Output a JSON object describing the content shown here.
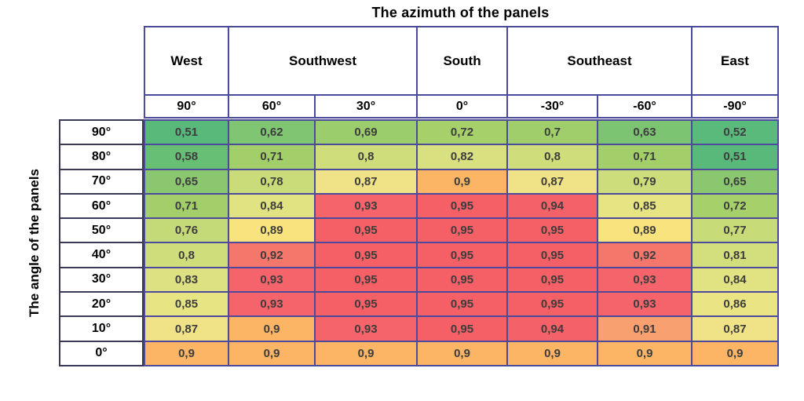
{
  "title": "The azimuth of the panels",
  "ylabel": "The angle of the panels",
  "chart_data": {
    "type": "heatmap",
    "title": "The azimuth of the panels",
    "xlabel": "The azimuth of the panels",
    "ylabel": "The angle of the panels",
    "legend_position": "none",
    "grid": true,
    "column_groups": [
      {
        "label": "West",
        "span": 1
      },
      {
        "label": "Southwest",
        "span": 2
      },
      {
        "label": "South",
        "span": 1
      },
      {
        "label": "Southeast",
        "span": 2
      },
      {
        "label": "East",
        "span": 1
      }
    ],
    "azimuth_columns": [
      "90°",
      "60°",
      "30°",
      "0°",
      "-30°",
      "-60°",
      "-90°"
    ],
    "angle_rows": [
      "90°",
      "80°",
      "70°",
      "60°",
      "50°",
      "40°",
      "30°",
      "20°",
      "10°",
      "0°"
    ],
    "values": [
      [
        "0,51",
        "0,62",
        "0,69",
        "0,72",
        "0,7",
        "0,63",
        "0,52"
      ],
      [
        "0,58",
        "0,71",
        "0,8",
        "0,82",
        "0,8",
        "0,71",
        "0,51"
      ],
      [
        "0,65",
        "0,78",
        "0,87",
        "0,9",
        "0,87",
        "0,79",
        "0,65"
      ],
      [
        "0,71",
        "0,84",
        "0,93",
        "0,95",
        "0,94",
        "0,85",
        "0,72"
      ],
      [
        "0,76",
        "0,89",
        "0,95",
        "0,95",
        "0,95",
        "0,89",
        "0,77"
      ],
      [
        "0,8",
        "0,92",
        "0,95",
        "0,95",
        "0,95",
        "0,92",
        "0,81"
      ],
      [
        "0,83",
        "0,93",
        "0,95",
        "0,95",
        "0,95",
        "0,93",
        "0,84"
      ],
      [
        "0,85",
        "0,93",
        "0,95",
        "0,95",
        "0,95",
        "0,93",
        "0,86"
      ],
      [
        "0,87",
        "0,9",
        "0,93",
        "0,95",
        "0,94",
        "0,91",
        "0,87"
      ],
      [
        "0,9",
        "0,9",
        "0,9",
        "0,9",
        "0,9",
        "0,9",
        "0,9"
      ]
    ],
    "value_range": [
      "0,51",
      "0,95"
    ],
    "colormap": {
      "0,51": "#58b97b",
      "0,52": "#59ba7b",
      "0,58": "#67be75",
      "0,62": "#80c571",
      "0,63": "#7dc472",
      "0,65": "#8ac76f",
      "0,69": "#9ccd6c",
      "0,7": "#9fce6b",
      "0,71": "#a3cf6a",
      "0,72": "#a6d06a",
      "0,76": "#c4da78",
      "0,77": "#c7db79",
      "0,78": "#cadc7a",
      "0,79": "#cddd7b",
      "0,8": "#cfdd7b",
      "0,81": "#d3de7d",
      "0,82": "#d9e07f",
      "0,83": "#dde181",
      "0,84": "#e1e282",
      "0,85": "#e7e484",
      "0,86": "#ebe485",
      "0,87": "#f0e286",
      "0,89": "#f9e37e",
      "0,9": "#fbb564",
      "0,91": "#f9a071",
      "0,92": "#f5776c",
      "0,93": "#f5646a",
      "0,94": "#f56168",
      "0,95": "#f55f66"
    },
    "colors": {
      "grid_border": "#4c4a9c",
      "row_header_border": "#3a3a58",
      "value_text": "#3d3d3d",
      "header_text": "#000000",
      "background": "#ffffff"
    }
  }
}
